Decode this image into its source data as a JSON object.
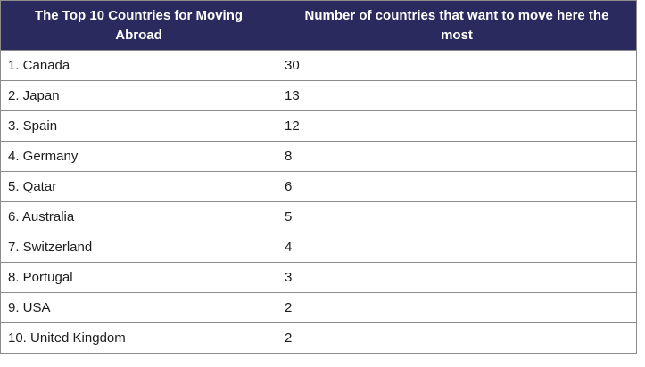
{
  "chart_data": {
    "type": "table",
    "title": "The Top 10 Countries for Moving Abroad",
    "columns": [
      "The Top 10 Countries for Moving Abroad",
      "Number of countries that want to move here the most"
    ],
    "categories": [
      "Canada",
      "Japan",
      "Spain",
      "Germany",
      "Qatar",
      "Australia",
      "Switzerland",
      "Portugal",
      "USA",
      "United Kingdom"
    ],
    "values": [
      30,
      13,
      12,
      8,
      6,
      5,
      4,
      3,
      2,
      2
    ]
  },
  "table": {
    "header": {
      "country_col": "The Top 10 Countries for Moving Abroad",
      "value_col": "Number of countries that want to move here the most"
    },
    "rows": [
      {
        "label": "1. Canada",
        "value": "30"
      },
      {
        "label": "2. Japan",
        "value": "13"
      },
      {
        "label": "3. Spain",
        "value": "12"
      },
      {
        "label": "4. Germany",
        "value": "8"
      },
      {
        "label": "5. Qatar",
        "value": "6"
      },
      {
        "label": "6. Australia",
        "value": "5"
      },
      {
        "label": "7. Switzerland",
        "value": "4"
      },
      {
        "label": "8. Portugal",
        "value": "3"
      },
      {
        "label": "9. USA",
        "value": "2"
      },
      {
        "label": "10. United Kingdom",
        "value": "2"
      }
    ]
  },
  "colors": {
    "header_bg": "#2b2a5e",
    "header_text": "#ffffff",
    "border": "#8c8c8c",
    "body_text": "#1d1d1f",
    "page_bg": "#ffffff"
  }
}
